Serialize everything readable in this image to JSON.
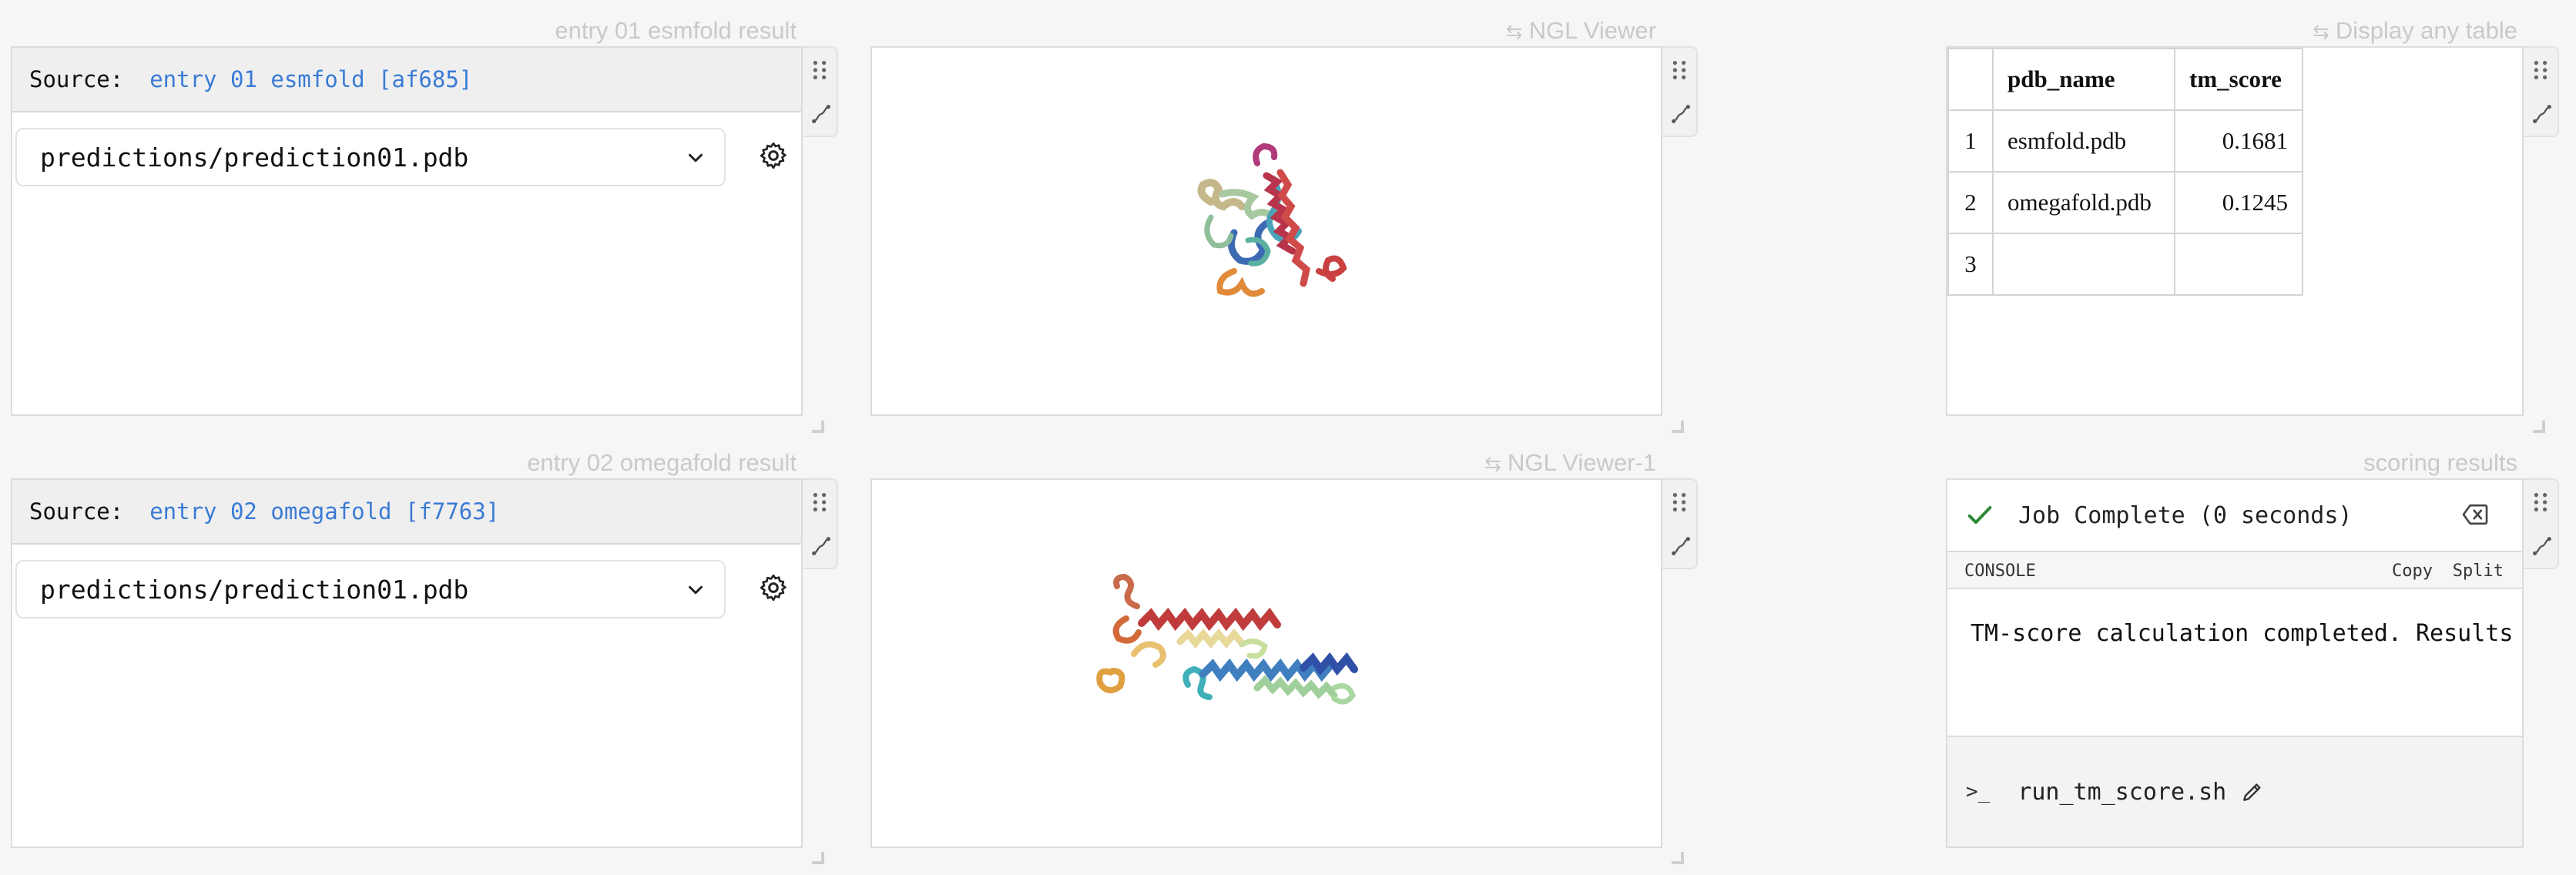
{
  "blocks": {
    "esmfold_source": {
      "title": "entry 01 esmfold result",
      "source_label": "Source:",
      "source_value": "entry 01 esmfold [af685]",
      "file": "predictions/prediction01.pdb"
    },
    "omegafold_source": {
      "title": "entry 02 omegafold result",
      "source_label": "Source:",
      "source_value": "entry 02 omegafold [f7763]",
      "file": "predictions/prediction01.pdb"
    },
    "viewer_1": {
      "title": "NGL Viewer"
    },
    "viewer_2": {
      "title": "NGL Viewer-1"
    },
    "table": {
      "title": "Display any table",
      "columns": [
        "pdb_name",
        "tm_score"
      ],
      "rows": [
        {
          "index": "1",
          "pdb_name": "esmfold.pdb",
          "tm_score": "0.1681"
        },
        {
          "index": "2",
          "pdb_name": "omegafold.pdb",
          "tm_score": "0.1245"
        },
        {
          "index": "3",
          "pdb_name": "",
          "tm_score": ""
        }
      ]
    },
    "scoring": {
      "title": "scoring results",
      "status": "Job Complete (0 seconds)",
      "console_label": "CONSOLE",
      "copy_label": "Copy",
      "split_label": "Split",
      "output": "TM-score calculation completed. Results in",
      "command": "run_tm_score.sh"
    }
  },
  "icons": {
    "drag": "drag-handle-icon",
    "connect": "connect-icon",
    "link": "linked-arrows-icon",
    "settings": "gear-icon",
    "dropdown": "chevron-down-icon",
    "status": "check-icon",
    "clear": "backspace-icon",
    "prompt": "terminal-prompt-icon",
    "edit": "pencil-icon"
  },
  "colors": {
    "accent_link": "#3a7bd5",
    "success": "#2e8b3a",
    "title_muted": "#c9c9c9"
  }
}
